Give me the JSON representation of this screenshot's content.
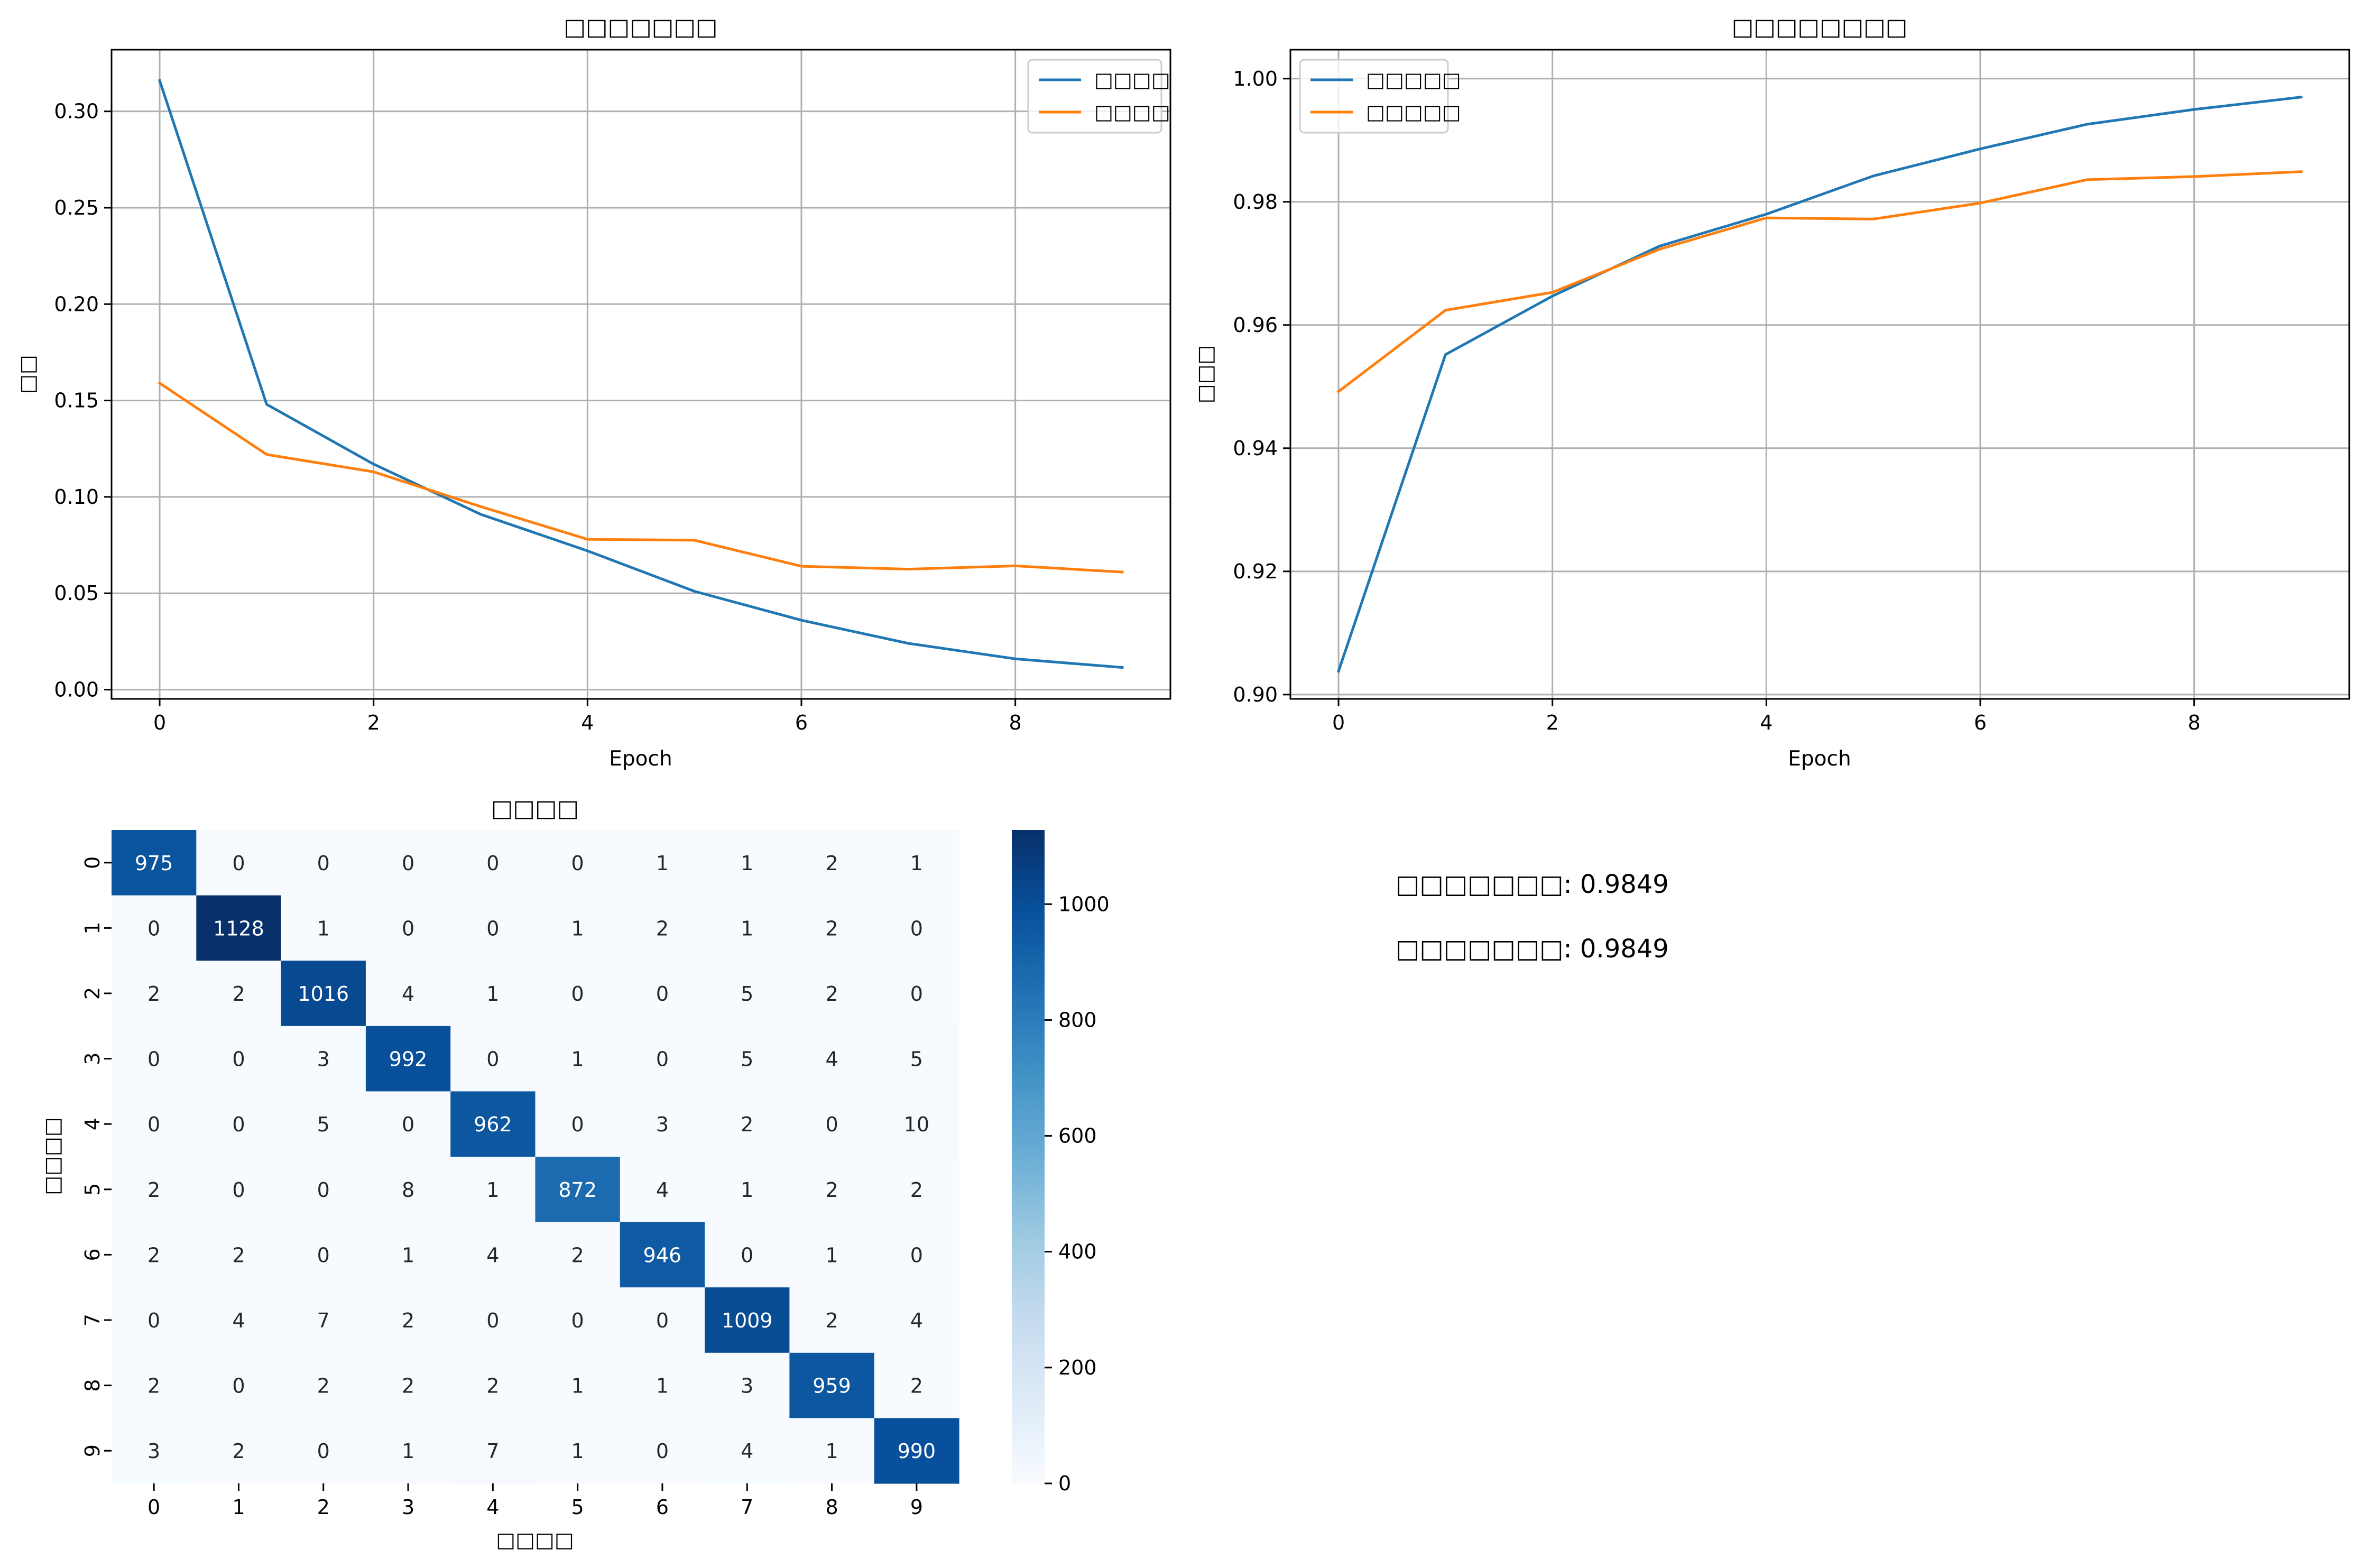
{
  "chart_data": [
    {
      "type": "line",
      "title": "□□□□□□□",
      "xlabel": "Epoch",
      "ylabel": "□□",
      "x": [
        0,
        1,
        2,
        3,
        4,
        5,
        6,
        7,
        8,
        9
      ],
      "xlim": [
        -0.45,
        9.45
      ],
      "ylim": [
        -0.0048,
        0.332
      ],
      "xticks": [
        0,
        2,
        4,
        6,
        8
      ],
      "xtick_labels": [
        "0",
        "2",
        "4",
        "6",
        "8"
      ],
      "yticks": [
        0.0,
        0.05,
        0.1,
        0.15,
        0.2,
        0.25,
        0.3
      ],
      "ytick_labels": [
        "0.00",
        "0.05",
        "0.10",
        "0.15",
        "0.20",
        "0.25",
        "0.30"
      ],
      "grid": true,
      "legend_position": "top-right",
      "series": [
        {
          "name": "□□□□",
          "color": "#1f77b4",
          "values": [
            0.316,
            0.148,
            0.117,
            0.091,
            0.072,
            0.051,
            0.036,
            0.024,
            0.016,
            0.0115
          ]
        },
        {
          "name": "□□□□",
          "color": "#ff7f0e",
          "values": [
            0.159,
            0.122,
            0.113,
            0.095,
            0.078,
            0.0775,
            0.064,
            0.0625,
            0.0642,
            0.061
          ]
        }
      ]
    },
    {
      "type": "line",
      "title": "□□□□□□□□",
      "xlabel": "Epoch",
      "ylabel": "□□□",
      "x": [
        0,
        1,
        2,
        3,
        4,
        5,
        6,
        7,
        8,
        9
      ],
      "xlim": [
        -0.45,
        9.45
      ],
      "ylim": [
        0.8993,
        1.0047
      ],
      "xticks": [
        0,
        2,
        4,
        6,
        8
      ],
      "xtick_labels": [
        "0",
        "2",
        "4",
        "6",
        "8"
      ],
      "yticks": [
        0.9,
        0.92,
        0.94,
        0.96,
        0.98,
        1.0
      ],
      "ytick_labels": [
        "0.90",
        "0.92",
        "0.94",
        "0.96",
        "0.98",
        "1.00"
      ],
      "grid": true,
      "legend_position": "top-left",
      "series": [
        {
          "name": "□□□□□",
          "color": "#1f77b4",
          "values": [
            0.9038,
            0.9552,
            0.9647,
            0.9728,
            0.978,
            0.9842,
            0.9886,
            0.9926,
            0.995,
            0.997
          ]
        },
        {
          "name": "□□□□□",
          "color": "#ff7f0e",
          "values": [
            0.9492,
            0.9624,
            0.9653,
            0.9723,
            0.9774,
            0.9772,
            0.9798,
            0.9836,
            0.9841,
            0.9849
          ]
        }
      ]
    },
    {
      "type": "heatmap",
      "title": "□□□□",
      "xlabel": "□□□□",
      "ylabel": "□□□□",
      "x_categories": [
        "0",
        "1",
        "2",
        "3",
        "4",
        "5",
        "6",
        "7",
        "8",
        "9"
      ],
      "y_categories": [
        "0",
        "1",
        "2",
        "3",
        "4",
        "5",
        "6",
        "7",
        "8",
        "9"
      ],
      "colormap": "Blues",
      "colorbar_range": [
        0,
        1128
      ],
      "colorbar_ticks": [
        0,
        200,
        400,
        600,
        800,
        1000
      ],
      "matrix": [
        [
          975,
          0,
          0,
          0,
          0,
          0,
          1,
          1,
          2,
          1
        ],
        [
          0,
          1128,
          1,
          0,
          0,
          1,
          2,
          1,
          2,
          0
        ],
        [
          2,
          2,
          1016,
          4,
          1,
          0,
          0,
          5,
          2,
          0
        ],
        [
          0,
          0,
          3,
          992,
          0,
          1,
          0,
          5,
          4,
          5
        ],
        [
          0,
          0,
          5,
          0,
          962,
          0,
          3,
          2,
          0,
          10
        ],
        [
          2,
          0,
          0,
          8,
          1,
          872,
          4,
          1,
          2,
          2
        ],
        [
          2,
          2,
          0,
          1,
          4,
          2,
          946,
          0,
          1,
          0
        ],
        [
          0,
          4,
          7,
          2,
          0,
          0,
          0,
          1009,
          2,
          4
        ],
        [
          2,
          0,
          2,
          2,
          2,
          1,
          1,
          3,
          959,
          2
        ],
        [
          3,
          2,
          0,
          1,
          7,
          1,
          0,
          4,
          1,
          990
        ]
      ]
    }
  ],
  "summary": {
    "line1": "□□□□□□□: 0.9849",
    "line2": "□□□□□□□: 0.9849"
  }
}
